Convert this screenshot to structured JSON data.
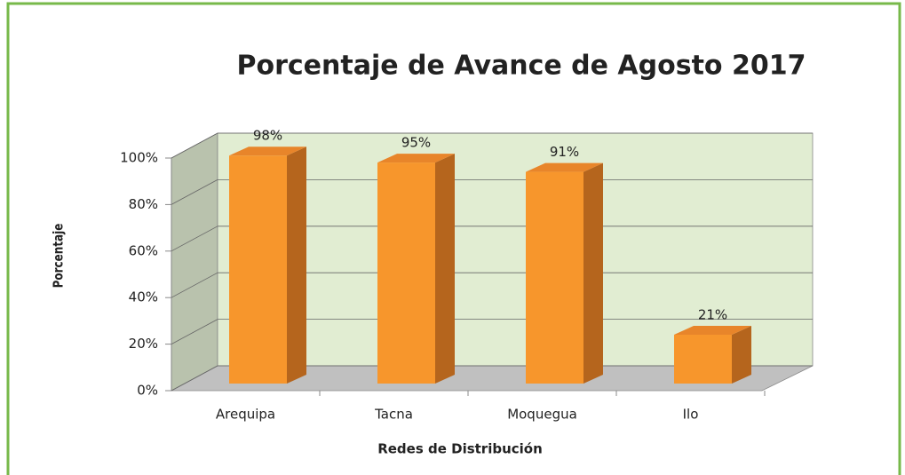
{
  "chart_data": {
    "type": "bar3d",
    "title": "Porcentaje de Avance de Agosto 2017",
    "ylabel": "Porcentaje",
    "xlabel": "Redes de Distribución",
    "categories": [
      "Arequipa",
      "Tacna",
      "Moquegua",
      "Ilo"
    ],
    "values": [
      98,
      95,
      91,
      21
    ],
    "value_labels": [
      "98%",
      "95%",
      "91%",
      "21%"
    ],
    "color": "#f7962c",
    "ylim": [
      0,
      100
    ],
    "yticks": [
      {
        "value": 0,
        "label": "0%"
      },
      {
        "value": 20,
        "label": "20%"
      },
      {
        "value": 40,
        "label": "40%"
      },
      {
        "value": 60,
        "label": "60%"
      },
      {
        "value": 80,
        "label": "80%"
      },
      {
        "value": 100,
        "label": "100%"
      }
    ],
    "grid": true
  }
}
